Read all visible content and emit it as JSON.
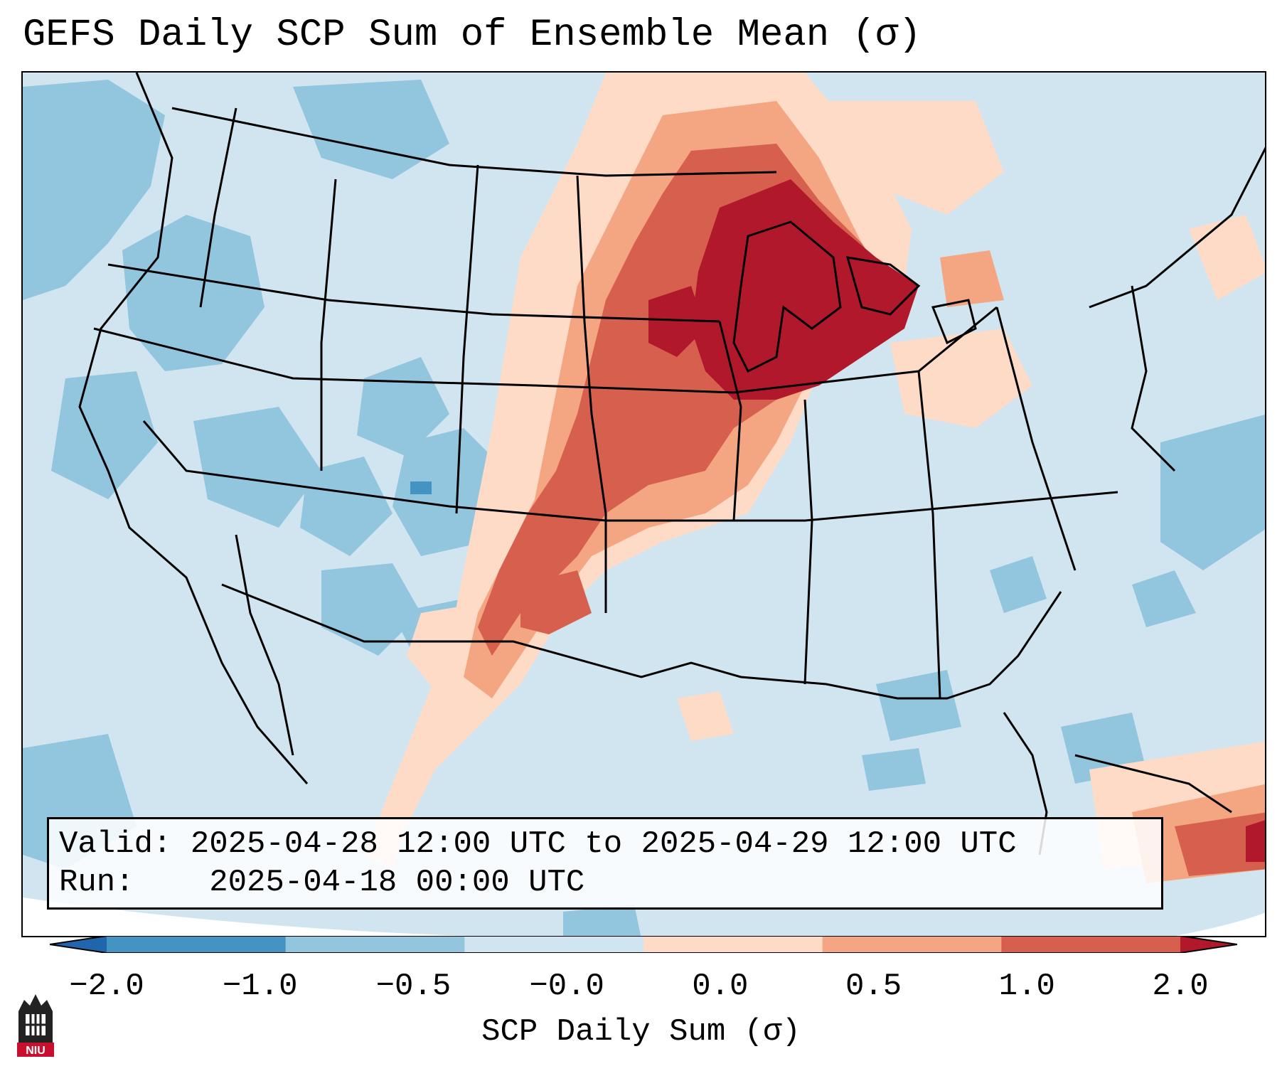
{
  "title": "GEFS Daily SCP Sum of Ensemble Mean (σ)",
  "info": {
    "valid": "Valid: 2025-04-28 12:00 UTC to 2025-04-29 12:00 UTC",
    "run": "Run:    2025-04-18 00:00 UTC"
  },
  "colorbar": {
    "label": "SCP Daily Sum (σ)",
    "ticks": [
      "−2.0",
      "−1.0",
      "−0.5",
      "−0.0",
      "0.0",
      "0.5",
      "1.0",
      "2.0"
    ],
    "colors": {
      "below": "#2166ac",
      "bins": [
        "#4393c3",
        "#92c5de",
        "#d1e5f0",
        "#fddbc7",
        "#f4a582",
        "#d6604d"
      ],
      "above": "#b2182b"
    }
  },
  "logo": {
    "text": "NIU",
    "icon": "niu-logo-icon"
  }
}
